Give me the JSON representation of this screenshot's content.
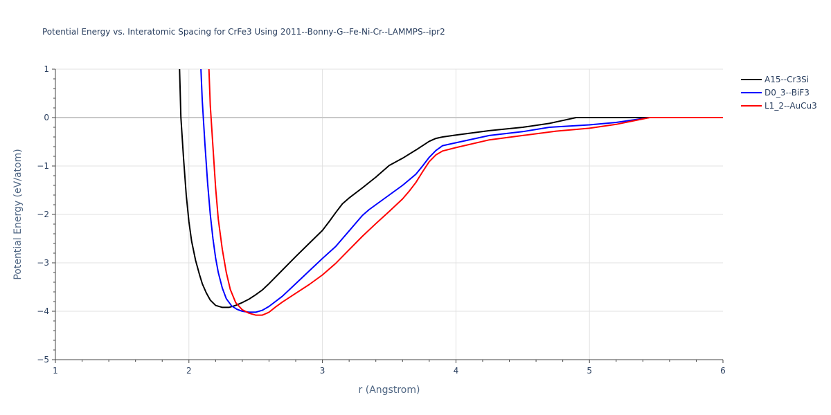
{
  "chart_data": {
    "type": "line",
    "title": "Potential Energy vs. Interatomic Spacing for CrFe3 Using 2011--Bonny-G--Fe-Ni-Cr--LAMMPS--ipr2",
    "xlabel": "r (Angstrom)",
    "ylabel": "Potential Energy (eV/atom)",
    "xlim": [
      1,
      6
    ],
    "ylim": [
      -5,
      1
    ],
    "x_ticks": [
      "1",
      "2",
      "3",
      "4",
      "5",
      "6"
    ],
    "y_ticks": [
      "1",
      "0",
      "−1",
      "−2",
      "−3",
      "−4",
      "−5"
    ],
    "grid": true,
    "legend_position": "top-right",
    "series": [
      {
        "name": "A15--Cr3Si",
        "color": "#000000",
        "x": [
          1.93,
          1.94,
          1.96,
          1.98,
          2.0,
          2.02,
          2.05,
          2.08,
          2.1,
          2.13,
          2.16,
          2.2,
          2.25,
          2.3,
          2.35,
          2.4,
          2.45,
          2.5,
          2.55,
          2.6,
          2.7,
          2.8,
          2.9,
          3.0,
          3.05,
          3.1,
          3.15,
          3.2,
          3.3,
          3.4,
          3.5,
          3.6,
          3.7,
          3.8,
          3.85,
          3.9,
          4.0,
          4.25,
          4.5,
          4.7,
          4.8,
          4.9,
          5.0,
          5.5,
          6.0
        ],
        "y": [
          1.0,
          0.0,
          -0.85,
          -1.6,
          -2.15,
          -2.55,
          -2.95,
          -3.25,
          -3.43,
          -3.62,
          -3.77,
          -3.88,
          -3.92,
          -3.92,
          -3.88,
          -3.82,
          -3.75,
          -3.66,
          -3.56,
          -3.43,
          -3.15,
          -2.87,
          -2.6,
          -2.33,
          -2.15,
          -1.96,
          -1.78,
          -1.66,
          -1.45,
          -1.23,
          -0.99,
          -0.84,
          -0.67,
          -0.49,
          -0.43,
          -0.4,
          -0.36,
          -0.27,
          -0.2,
          -0.12,
          -0.06,
          0.0,
          0.0,
          0.0,
          0.0
        ]
      },
      {
        "name": "D0_3--BiF3",
        "color": "#0000ff",
        "x": [
          2.09,
          2.1,
          2.12,
          2.14,
          2.16,
          2.18,
          2.2,
          2.22,
          2.25,
          2.28,
          2.32,
          2.36,
          2.4,
          2.45,
          2.5,
          2.55,
          2.6,
          2.7,
          2.8,
          2.9,
          3.0,
          3.1,
          3.15,
          3.2,
          3.3,
          3.35,
          3.4,
          3.5,
          3.6,
          3.7,
          3.75,
          3.8,
          3.85,
          3.9,
          4.0,
          4.25,
          4.5,
          4.7,
          5.0,
          5.2,
          5.45,
          6.0
        ],
        "y": [
          1.0,
          0.35,
          -0.55,
          -1.35,
          -2.0,
          -2.5,
          -2.9,
          -3.2,
          -3.52,
          -3.74,
          -3.89,
          -3.96,
          -4.0,
          -4.02,
          -4.02,
          -3.98,
          -3.9,
          -3.69,
          -3.43,
          -3.17,
          -2.91,
          -2.66,
          -2.5,
          -2.34,
          -2.02,
          -1.9,
          -1.8,
          -1.6,
          -1.4,
          -1.17,
          -1.0,
          -0.82,
          -0.68,
          -0.58,
          -0.52,
          -0.37,
          -0.29,
          -0.2,
          -0.15,
          -0.1,
          0.0,
          0.0
        ]
      },
      {
        "name": "L1_2--AuCu3",
        "color": "#ff0000",
        "x": [
          2.15,
          2.16,
          2.18,
          2.2,
          2.22,
          2.25,
          2.28,
          2.31,
          2.35,
          2.4,
          2.45,
          2.5,
          2.55,
          2.6,
          2.65,
          2.7,
          2.8,
          2.9,
          3.0,
          3.1,
          3.2,
          3.3,
          3.4,
          3.5,
          3.6,
          3.65,
          3.7,
          3.75,
          3.8,
          3.85,
          3.9,
          4.0,
          4.25,
          4.5,
          4.75,
          5.0,
          5.2,
          5.45,
          6.0
        ],
        "y": [
          1.0,
          0.25,
          -0.6,
          -1.45,
          -2.1,
          -2.72,
          -3.2,
          -3.55,
          -3.82,
          -3.97,
          -4.04,
          -4.08,
          -4.08,
          -4.02,
          -3.91,
          -3.81,
          -3.63,
          -3.45,
          -3.25,
          -3.01,
          -2.73,
          -2.45,
          -2.19,
          -1.94,
          -1.68,
          -1.52,
          -1.34,
          -1.12,
          -0.91,
          -0.77,
          -0.69,
          -0.62,
          -0.46,
          -0.37,
          -0.28,
          -0.22,
          -0.14,
          0.0,
          0.0
        ]
      }
    ]
  }
}
